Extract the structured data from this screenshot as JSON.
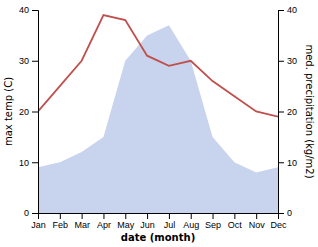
{
  "chart_data": {
    "type": "line",
    "xlabel": "date (month)",
    "ylabel": "max temp (C)",
    "y2label": "med. precipitation (kg/m2)",
    "categories": [
      "Jan",
      "Feb",
      "Mar",
      "Apr",
      "May",
      "Jun",
      "Jul",
      "Aug",
      "Sep",
      "Oct",
      "Nov",
      "Dec"
    ],
    "series": [
      {
        "type": "area",
        "color": "#c8d4ed",
        "axis": "y2",
        "values": [
          9,
          10,
          12,
          15,
          30,
          35,
          37,
          30,
          15,
          10,
          8,
          9
        ]
      },
      {
        "type": "line",
        "color": "#c0504d",
        "values": [
          20,
          25,
          30,
          39,
          38,
          31,
          29,
          30,
          26,
          23,
          20,
          19
        ]
      }
    ],
    "ylim": [
      0,
      40
    ],
    "yticks": [
      0,
      10,
      20,
      30,
      40
    ],
    "y2lim": [
      0,
      40
    ],
    "y2ticks": [
      0,
      10,
      20,
      30,
      40
    ],
    "grid": false
  }
}
